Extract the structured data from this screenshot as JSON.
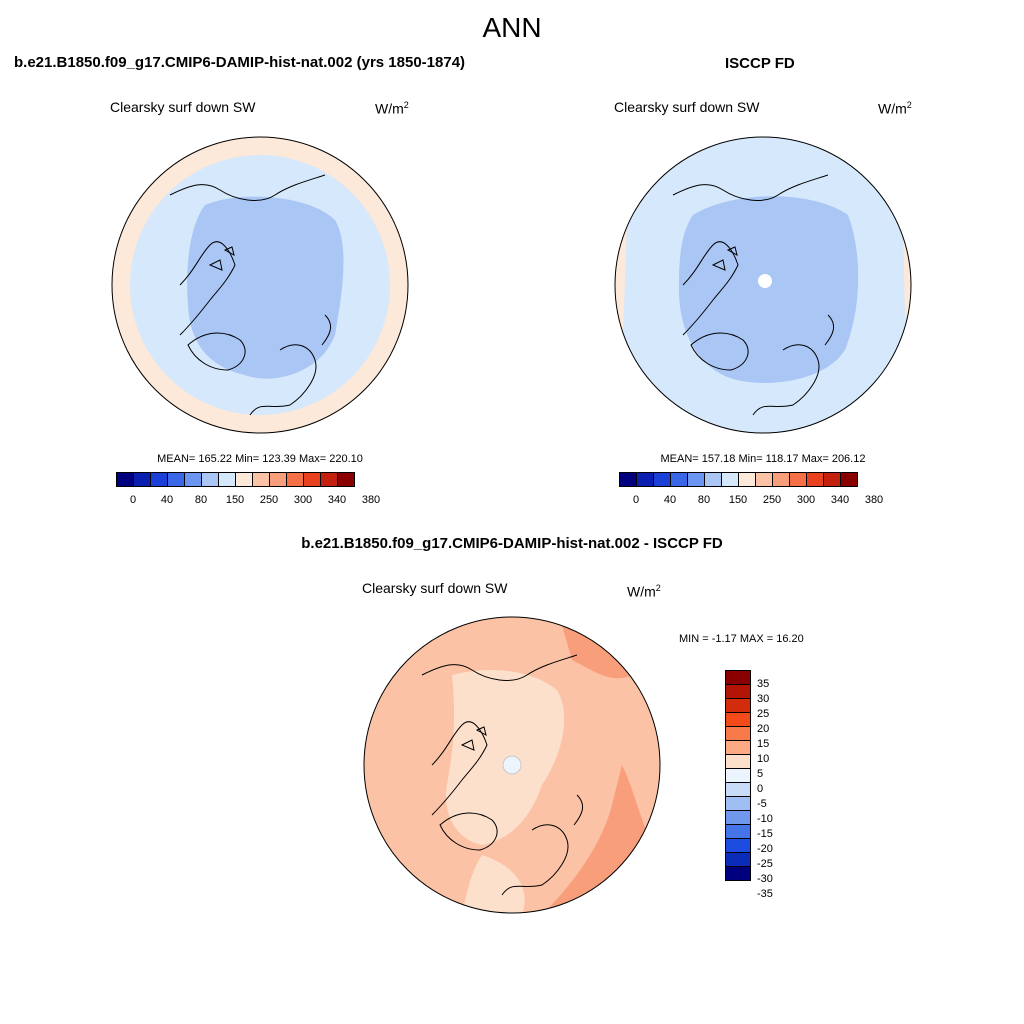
{
  "main_title": "ANN",
  "panels": [
    {
      "title": "b.e21.B1850.f09_g17.CMIP6-DAMIP-hist-nat.002 (yrs 1850-1874)",
      "variable": "Clearsky surf down SW",
      "units_base": "W/m",
      "units_exp": "2",
      "stats": "MEAN= 165.22  Min= 123.39  Max= 220.10",
      "colorbar_labels": [
        "0",
        "40",
        "80",
        "150",
        "250",
        "300",
        "340",
        "380"
      ]
    },
    {
      "title": "ISCCP FD",
      "variable": "Clearsky surf down SW",
      "units_base": "W/m",
      "units_exp": "2",
      "stats": "MEAN= 157.18  Min= 118.17  Max= 206.12",
      "colorbar_labels": [
        "0",
        "40",
        "80",
        "150",
        "250",
        "300",
        "340",
        "380"
      ]
    }
  ],
  "diff_panel": {
    "title": "b.e21.B1850.f09_g17.CMIP6-DAMIP-hist-nat.002 - ISCCP FD",
    "variable": "Clearsky surf down SW",
    "units_base": "W/m",
    "units_exp": "2",
    "stats": "MIN =  -1.17 MAX =  16.20",
    "colorbar_labels": [
      "35",
      "30",
      "25",
      "20",
      "15",
      "10",
      "5",
      "0",
      "-5",
      "-10",
      "-15",
      "-20",
      "-25",
      "-30",
      "-35"
    ]
  },
  "colors": {
    "abs_bar": [
      "#00007f",
      "#0a1fb0",
      "#1a40d8",
      "#3a66e8",
      "#6b95f0",
      "#a9c6f5",
      "#d6e8fb",
      "#fde9d9",
      "#fbc2a5",
      "#f89e7a",
      "#f57047",
      "#e94020",
      "#c4200e",
      "#8a0000"
    ],
    "diff_bar": [
      "#8a0000",
      "#b21405",
      "#d32c0d",
      "#f24a18",
      "#f8794a",
      "#fbaa84",
      "#fde0cc",
      "#ecf4fd",
      "#c8dcf8",
      "#9fbff2",
      "#6f98ec",
      "#4574e8",
      "#1e4ce0",
      "#0a2cb8",
      "#00007f"
    ],
    "map_light_blue": "#d6e8fb",
    "map_mid_blue": "#a9c6f5",
    "map_peach": "#fde9d9",
    "diff_light": "#fde0cc",
    "diff_mid": "#fbc2a5",
    "diff_dark": "#f89e7a"
  }
}
